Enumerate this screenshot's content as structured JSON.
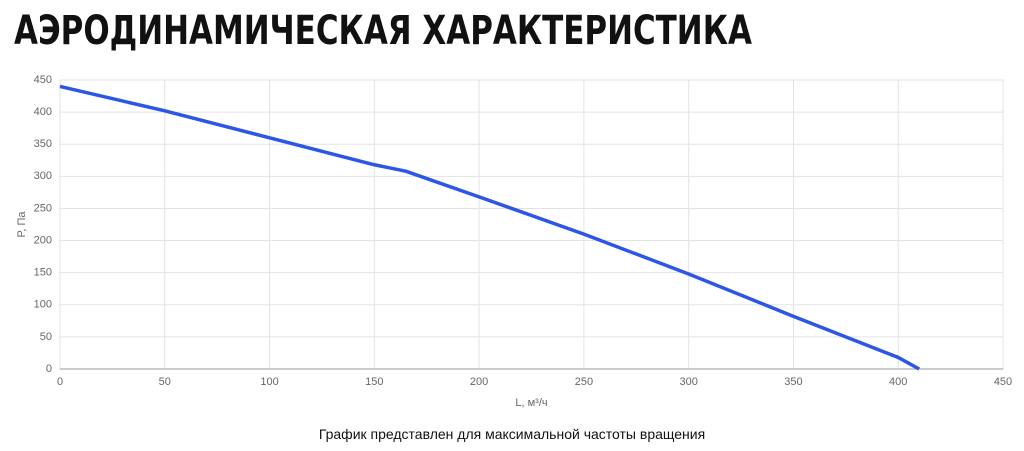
{
  "header": {
    "title": "АЭРОДИНАМИЧЕСКАЯ ХАРАКТЕРИСТИКА"
  },
  "chart_data": {
    "type": "line",
    "x": [
      0,
      50,
      100,
      150,
      165,
      200,
      250,
      300,
      350,
      400,
      410
    ],
    "series": [
      {
        "name": "P",
        "color": "#2b56e8",
        "values": [
          440,
          402,
          360,
          318,
          308,
          268,
          210,
          148,
          82,
          18,
          0
        ]
      }
    ],
    "xlabel": "L, м³/ч",
    "ylabel": "P, Па",
    "xlim": [
      0,
      450
    ],
    "xticks": [
      0,
      50,
      100,
      150,
      200,
      250,
      300,
      350,
      400,
      450
    ],
    "ylim": [
      0,
      450
    ],
    "yticks": [
      0,
      50,
      100,
      150,
      200,
      250,
      300,
      350,
      400,
      450
    ],
    "grid": true
  },
  "footer": {
    "note": "График представлен для максимальной частоты вращения"
  }
}
